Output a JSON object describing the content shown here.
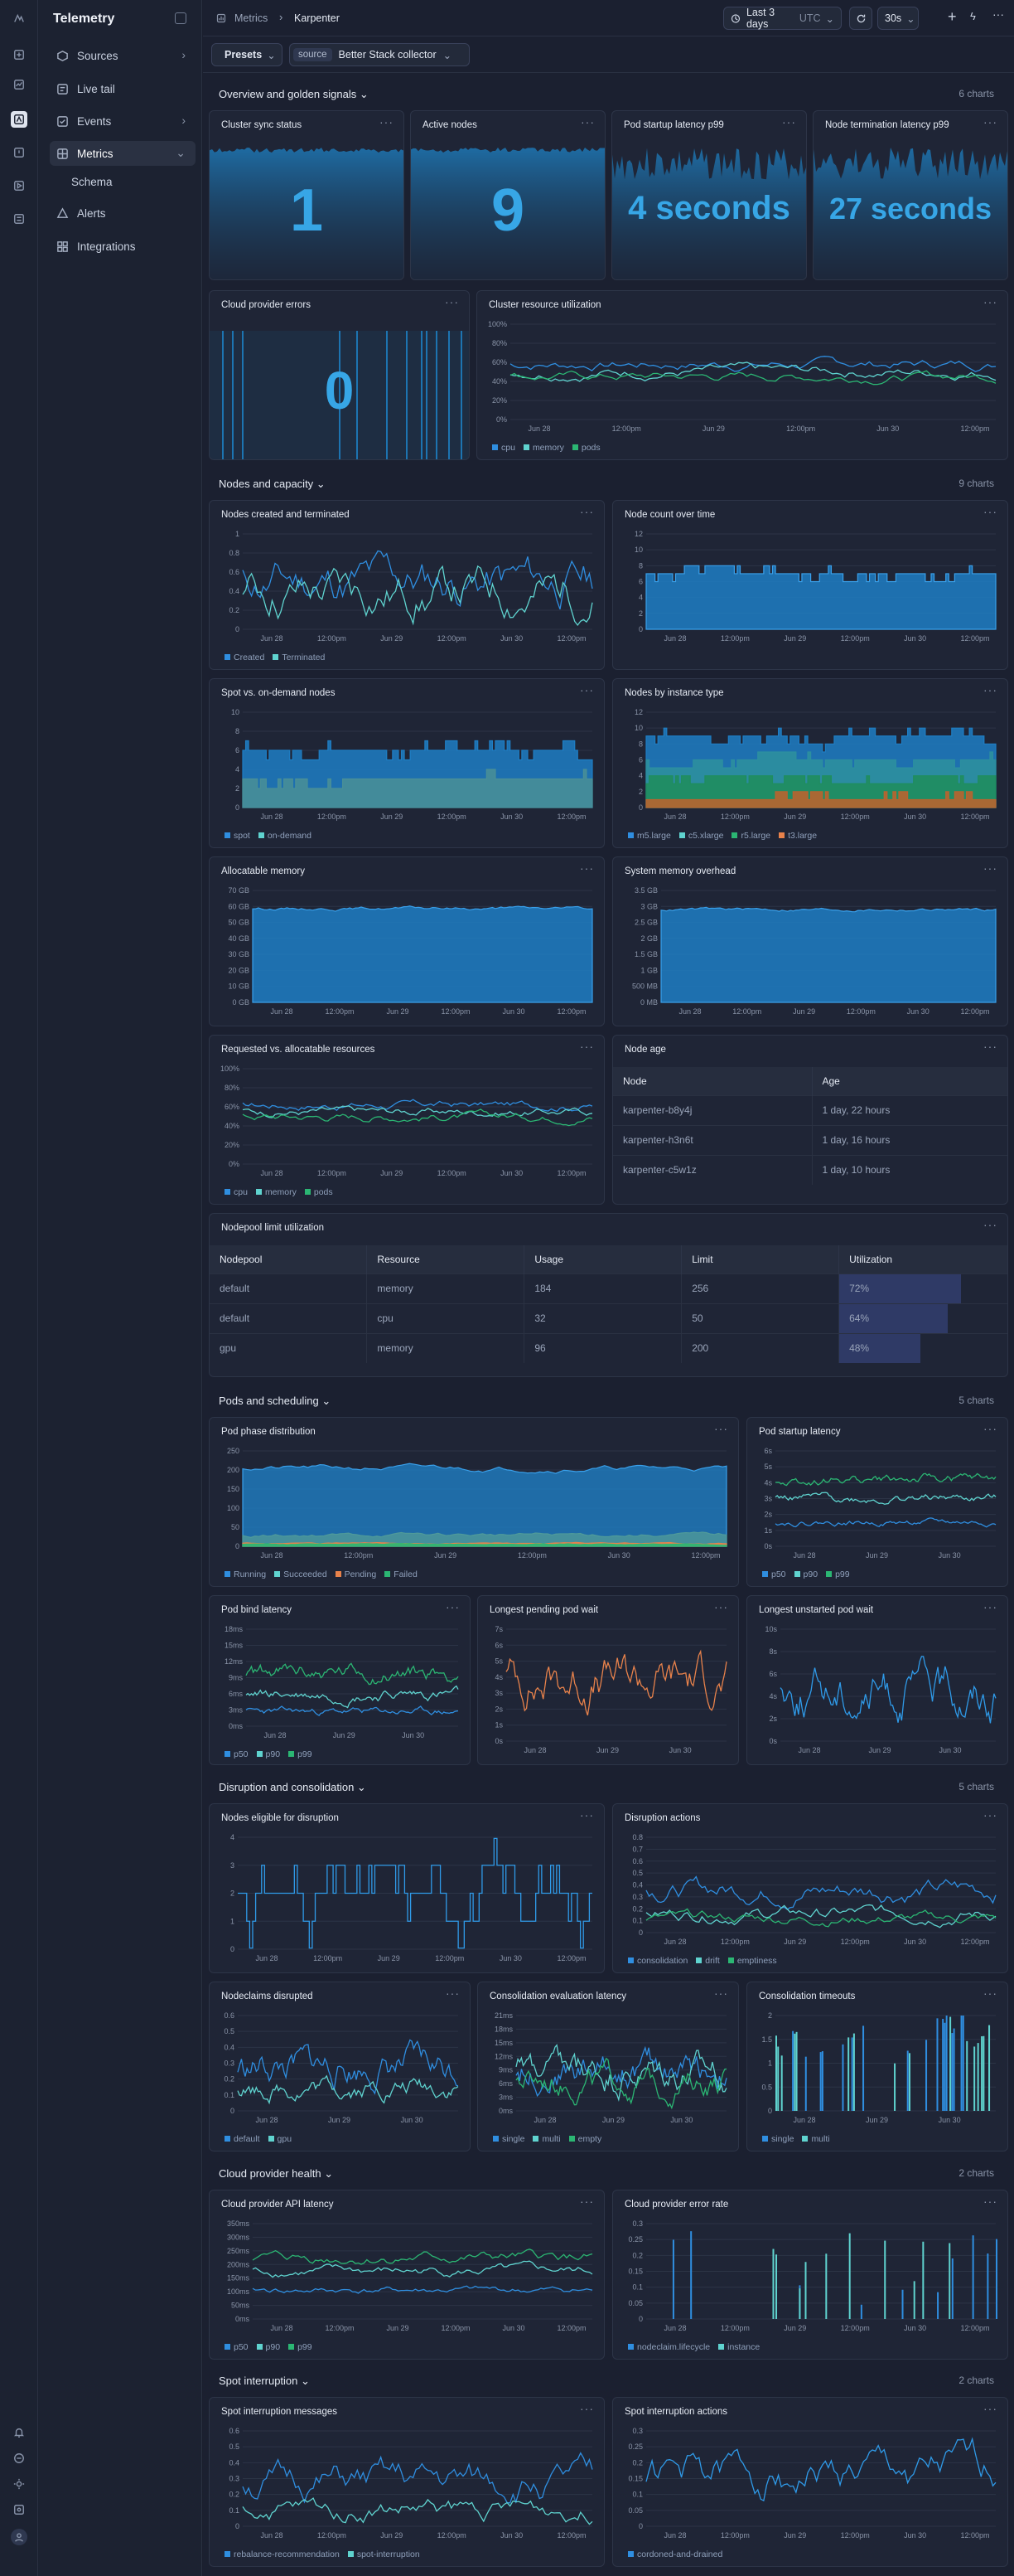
{
  "app": {
    "name": "Telemetry"
  },
  "sidebar": {
    "items": [
      {
        "label": "Sources",
        "icon": "cube-icon",
        "chevron": true
      },
      {
        "label": "Live tail",
        "icon": "list-icon"
      },
      {
        "label": "Events",
        "icon": "events-icon",
        "chevron": true
      },
      {
        "label": "Metrics",
        "icon": "metrics-icon",
        "active": true,
        "chevron": true
      },
      {
        "label": "Schema",
        "sub": true
      },
      {
        "label": "Alerts",
        "icon": "alert-icon"
      },
      {
        "label": "Integrations",
        "icon": "grid-icon"
      }
    ]
  },
  "header": {
    "breadcrumb_root": "Metrics",
    "breadcrumb_current": "Karpenter",
    "time_range": "Last 3 days",
    "timezone": "UTC",
    "refresh": "30s"
  },
  "filters": {
    "presets": "Presets",
    "source_label": "source",
    "source_value": "Better Stack collector"
  },
  "axis": {
    "dates": [
      "Jun 28",
      "12:00pm",
      "Jun 29",
      "12:00pm",
      "Jun 30",
      "12:00pm"
    ],
    "dates_short": [
      "Jun 28",
      "Jun 29",
      "Jun 30"
    ]
  },
  "sections": [
    {
      "title": "Overview and golden signals",
      "count": "6 charts"
    },
    {
      "title": "Nodes and capacity",
      "count": "9 charts"
    },
    {
      "title": "Pods and scheduling",
      "count": "5 charts"
    },
    {
      "title": "Disruption and consolidation",
      "count": "5 charts"
    },
    {
      "title": "Cloud provider health",
      "count": "2 charts"
    },
    {
      "title": "Spot interruption",
      "count": "2 charts"
    }
  ],
  "colors": {
    "blue": "#2f8ee0",
    "cyan": "#5fd3cf",
    "green": "#2bb673",
    "orange": "#e8824b",
    "teal": "#3fb8a9",
    "gray": "#8a97ad"
  },
  "charts": {
    "cluster_sync": {
      "title": "Cluster sync status",
      "value": "1"
    },
    "active_nodes": {
      "title": "Active nodes",
      "value": "9"
    },
    "pod_startup_p99": {
      "title": "Pod startup latency p99",
      "value": "4 seconds"
    },
    "node_term_p99": {
      "title": "Node termination latency p99",
      "value": "27 seconds"
    },
    "cloud_errors": {
      "title": "Cloud provider errors",
      "value": "0"
    },
    "cluster_resource": {
      "title": "Cluster resource utilization",
      "type": "line",
      "yticks": [
        "100%",
        "80%",
        "60%",
        "40%",
        "20%",
        "0%"
      ],
      "series": [
        {
          "name": "cpu",
          "color": "#2f8ee0"
        },
        {
          "name": "memory",
          "color": "#5fd3cf"
        },
        {
          "name": "pods",
          "color": "#2bb673"
        }
      ]
    },
    "nodes_created": {
      "title": "Nodes created and terminated",
      "type": "line",
      "yticks": [
        "1",
        "0.8",
        "0.6",
        "0.4",
        "0.2",
        "0"
      ],
      "series": [
        {
          "name": "Created",
          "color": "#2f8ee0"
        },
        {
          "name": "Terminated",
          "color": "#5fd3cf"
        }
      ]
    },
    "node_count": {
      "title": "Node count over time",
      "type": "area",
      "yticks": [
        "12",
        "10",
        "8",
        "6",
        "4",
        "2",
        "0"
      ]
    },
    "spot_ondemand": {
      "title": "Spot vs. on-demand nodes",
      "type": "area",
      "yticks": [
        "10",
        "8",
        "6",
        "4",
        "2",
        "0"
      ],
      "series": [
        {
          "name": "spot",
          "color": "#2f8ee0"
        },
        {
          "name": "on-demand",
          "color": "#5fd3cf"
        }
      ]
    },
    "nodes_instance": {
      "title": "Nodes by instance type",
      "type": "area",
      "yticks": [
        "12",
        "10",
        "8",
        "6",
        "4",
        "2",
        "0"
      ],
      "series": [
        {
          "name": "m5.large",
          "color": "#2f8ee0"
        },
        {
          "name": "c5.xlarge",
          "color": "#5fd3cf"
        },
        {
          "name": "r5.large",
          "color": "#2bb673"
        },
        {
          "name": "t3.large",
          "color": "#e8824b"
        }
      ]
    },
    "alloc_mem": {
      "title": "Allocatable memory",
      "type": "area",
      "yticks": [
        "70 GB",
        "60 GB",
        "50 GB",
        "40 GB",
        "30 GB",
        "20 GB",
        "10 GB",
        "0 GB"
      ]
    },
    "sys_mem": {
      "title": "System memory overhead",
      "type": "area",
      "yticks": [
        "3.5 GB",
        "3 GB",
        "2.5 GB",
        "2 GB",
        "1.5 GB",
        "1 GB",
        "500 MB",
        "0 MB"
      ]
    },
    "req_alloc": {
      "title": "Requested vs. allocatable resources",
      "type": "line",
      "yticks": [
        "100%",
        "80%",
        "60%",
        "40%",
        "20%",
        "0%"
      ],
      "series": [
        {
          "name": "cpu",
          "color": "#2f8ee0"
        },
        {
          "name": "memory",
          "color": "#5fd3cf"
        },
        {
          "name": "pods",
          "color": "#2bb673"
        }
      ]
    },
    "node_age": {
      "title": "Node age",
      "columns": [
        "Node",
        "Age"
      ],
      "rows": [
        [
          "karpenter-b8y4j",
          "1 day, 22 hours"
        ],
        [
          "karpenter-h3n6t",
          "1 day, 16 hours"
        ],
        [
          "karpenter-c5w1z",
          "1 day, 10 hours"
        ]
      ]
    },
    "nodepool": {
      "title": "Nodepool limit utilization",
      "columns": [
        "Nodepool",
        "Resource",
        "Usage",
        "Limit",
        "Utilization"
      ],
      "rows": [
        [
          "default",
          "memory",
          "184",
          "256",
          "72%"
        ],
        [
          "default",
          "cpu",
          "32",
          "50",
          "64%"
        ],
        [
          "gpu",
          "memory",
          "96",
          "200",
          "48%"
        ]
      ],
      "util": [
        0.72,
        0.64,
        0.48
      ]
    },
    "pod_phase": {
      "title": "Pod phase distribution",
      "type": "area",
      "yticks": [
        "250",
        "200",
        "150",
        "100",
        "50",
        "0"
      ],
      "series": [
        {
          "name": "Running",
          "color": "#2f8ee0"
        },
        {
          "name": "Succeeded",
          "color": "#5fd3cf"
        },
        {
          "name": "Pending",
          "color": "#e8824b"
        },
        {
          "name": "Failed",
          "color": "#2bb673"
        }
      ]
    },
    "pod_startup": {
      "title": "Pod startup latency",
      "type": "line",
      "yticks": [
        "6s",
        "5s",
        "4s",
        "3s",
        "2s",
        "1s",
        "0s"
      ],
      "series": [
        {
          "name": "p50",
          "color": "#2f8ee0"
        },
        {
          "name": "p90",
          "color": "#5fd3cf"
        },
        {
          "name": "p99",
          "color": "#2bb673"
        }
      ]
    },
    "pod_bind": {
      "title": "Pod bind latency",
      "type": "line",
      "yticks": [
        "18ms",
        "15ms",
        "12ms",
        "9ms",
        "6ms",
        "3ms",
        "0ms"
      ],
      "series": [
        {
          "name": "p50",
          "color": "#2f8ee0"
        },
        {
          "name": "p90",
          "color": "#5fd3cf"
        },
        {
          "name": "p99",
          "color": "#2bb673"
        }
      ]
    },
    "pending_wait": {
      "title": "Longest pending pod wait",
      "type": "line",
      "yticks": [
        "7s",
        "6s",
        "5s",
        "4s",
        "3s",
        "2s",
        "1s",
        "0s"
      ]
    },
    "unstarted_wait": {
      "title": "Longest unstarted pod wait",
      "type": "line",
      "yticks": [
        "10s",
        "8s",
        "6s",
        "4s",
        "2s",
        "0s"
      ]
    },
    "eligible": {
      "title": "Nodes eligible for disruption",
      "type": "line",
      "yticks": [
        "4",
        "3",
        "2",
        "1",
        "0"
      ]
    },
    "disrupt_actions": {
      "title": "Disruption actions",
      "type": "line",
      "yticks": [
        "0.8",
        "0.7",
        "0.6",
        "0.5",
        "0.4",
        "0.3",
        "0.2",
        "0.1",
        "0"
      ],
      "series": [
        {
          "name": "consolidation",
          "color": "#2f8ee0"
        },
        {
          "name": "drift",
          "color": "#5fd3cf"
        },
        {
          "name": "emptiness",
          "color": "#2bb673"
        }
      ]
    },
    "nodeclaims": {
      "title": "Nodeclaims disrupted",
      "type": "line",
      "yticks": [
        "0.6",
        "0.5",
        "0.4",
        "0.3",
        "0.2",
        "0.1",
        "0"
      ],
      "series": [
        {
          "name": "default",
          "color": "#2f8ee0"
        },
        {
          "name": "gpu",
          "color": "#5fd3cf"
        }
      ]
    },
    "consol_latency": {
      "title": "Consolidation evaluation latency",
      "type": "line",
      "yticks": [
        "21ms",
        "18ms",
        "15ms",
        "12ms",
        "9ms",
        "6ms",
        "3ms",
        "0ms"
      ],
      "series": [
        {
          "name": "single",
          "color": "#2f8ee0"
        },
        {
          "name": "multi",
          "color": "#5fd3cf"
        },
        {
          "name": "empty",
          "color": "#2bb673"
        }
      ]
    },
    "consol_timeouts": {
      "title": "Consolidation timeouts",
      "type": "bar",
      "yticks": [
        "2",
        "1.5",
        "1",
        "0.5",
        "0"
      ],
      "series": [
        {
          "name": "single",
          "color": "#2f8ee0"
        },
        {
          "name": "multi",
          "color": "#5fd3cf"
        }
      ]
    },
    "api_latency": {
      "title": "Cloud provider API latency",
      "type": "line",
      "yticks": [
        "350ms",
        "300ms",
        "250ms",
        "200ms",
        "150ms",
        "100ms",
        "50ms",
        "0ms"
      ],
      "series": [
        {
          "name": "p50",
          "color": "#2f8ee0"
        },
        {
          "name": "p90",
          "color": "#5fd3cf"
        },
        {
          "name": "p99",
          "color": "#2bb673"
        }
      ]
    },
    "error_rate": {
      "title": "Cloud provider error rate",
      "type": "bar",
      "yticks": [
        "0.3",
        "0.25",
        "0.2",
        "0.15",
        "0.1",
        "0.05",
        "0"
      ],
      "series": [
        {
          "name": "nodeclaim.lifecycle",
          "color": "#2f8ee0"
        },
        {
          "name": "instance",
          "color": "#5fd3cf"
        }
      ]
    },
    "spot_msgs": {
      "title": "Spot interruption messages",
      "type": "line",
      "yticks": [
        "0.6",
        "0.5",
        "0.4",
        "0.3",
        "0.2",
        "0.1",
        "0"
      ],
      "series": [
        {
          "name": "rebalance-recommendation",
          "color": "#2f8ee0"
        },
        {
          "name": "spot-interruption",
          "color": "#5fd3cf"
        }
      ]
    },
    "spot_actions": {
      "title": "Spot interruption actions",
      "type": "line",
      "yticks": [
        "0.3",
        "0.25",
        "0.2",
        "0.15",
        "0.1",
        "0.05",
        "0"
      ],
      "series": [
        {
          "name": "cordoned-and-drained",
          "color": "#2f8ee0"
        }
      ]
    }
  }
}
